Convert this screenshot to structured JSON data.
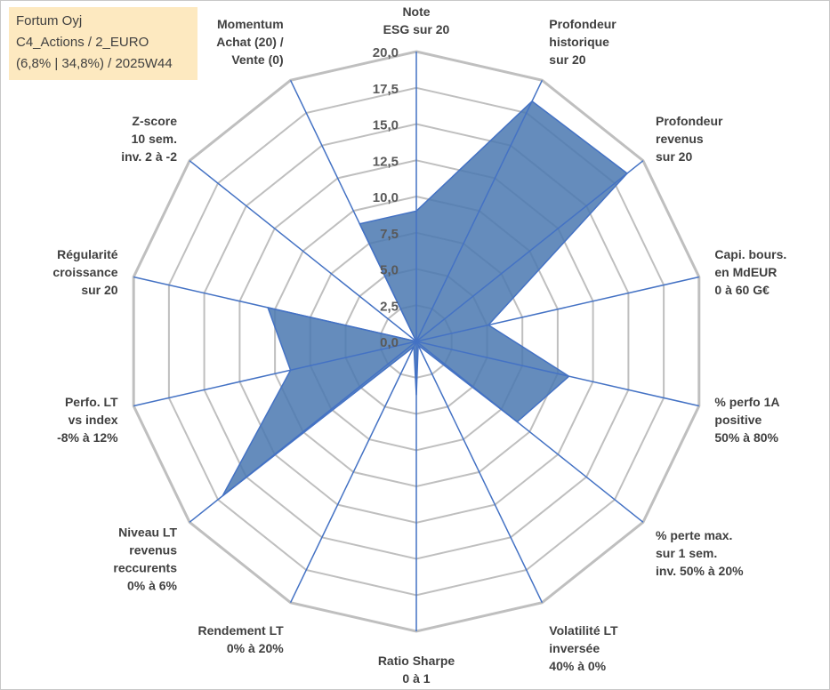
{
  "info": {
    "line1": "Fortum Oyj",
    "line2": "C4_Actions / 2_EURO",
    "line3": "(6,8% | 34,8%) / 2025W44"
  },
  "colors": {
    "series_fill": "#4a78b0",
    "series_line": "#4472c4",
    "grid": "#bfbfbf",
    "info_box": "#fde9c0"
  },
  "chart_data": {
    "type": "radar",
    "rlim": [
      0,
      20
    ],
    "ticks": [
      "0,0",
      "2,5",
      "5,0",
      "7,5",
      "10,0",
      "12,5",
      "15,0",
      "17,5",
      "20,0"
    ],
    "grid": true,
    "axes": [
      [
        "Note",
        "ESG sur 20"
      ],
      [
        "Profondeur",
        "historique",
        "sur 20"
      ],
      [
        "Profondeur",
        "revenus",
        "sur 20"
      ],
      [
        "Capi. bours.",
        "en MdEUR",
        "0 à 60 G€"
      ],
      [
        "% perfo 1A",
        "positive",
        "50% à 80%"
      ],
      [
        "% perte max.",
        "sur 1 sem.",
        "inv. 50% à 20%"
      ],
      [
        "Volatilité LT",
        "inversée",
        "40% à 0%"
      ],
      [
        "Ratio Sharpe",
        "0 à 1"
      ],
      [
        "Rendement LT",
        "0% à 20%"
      ],
      [
        "Niveau LT",
        "revenus",
        "reccurents",
        "0% à 6%"
      ],
      [
        "Perfo. LT",
        "vs index",
        "-8% à 12%"
      ],
      [
        "Régularité",
        "croissance",
        "sur 20"
      ],
      [
        "Z-score",
        "10 sem.",
        "inv. 2 à -2"
      ],
      [
        "Momentum",
        "Achat (20) /",
        "Vente (0)"
      ]
    ],
    "series": [
      {
        "values": [
          9.0,
          18.4,
          18.6,
          5.1,
          10.8,
          8.9,
          0.3,
          3.7,
          0.4,
          17.1,
          8.9,
          10.5,
          0.0,
          9.0
        ]
      }
    ]
  }
}
